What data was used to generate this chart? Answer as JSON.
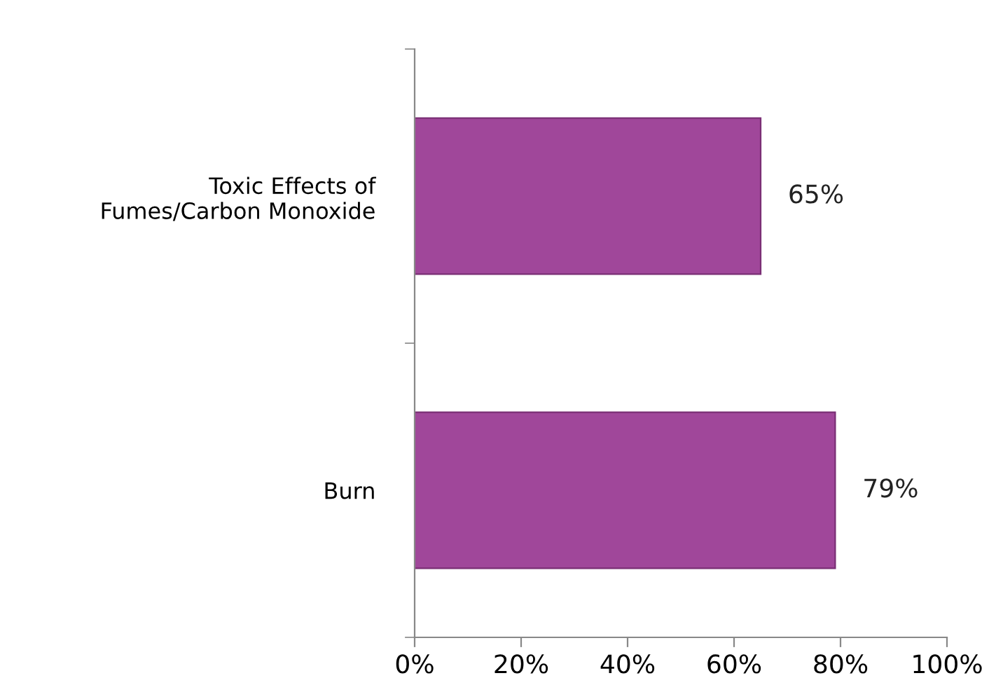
{
  "chart_data": {
    "type": "bar",
    "orientation": "horizontal",
    "categories": [
      "Toxic Effects of\nFumes/Carbon Monoxide",
      "Burn"
    ],
    "values": [
      65,
      79
    ],
    "value_labels": [
      "65%",
      "79%"
    ],
    "color": "#a0479a",
    "xlim": [
      0,
      100
    ],
    "xticks": [
      {
        "value": 0,
        "label": "0%"
      },
      {
        "value": 20,
        "label": "20%"
      },
      {
        "value": 40,
        "label": "40%"
      },
      {
        "value": 60,
        "label": "60%"
      },
      {
        "value": 80,
        "label": "80%"
      },
      {
        "value": 100,
        "label": "100%"
      }
    ],
    "grid": false,
    "legend": false
  }
}
